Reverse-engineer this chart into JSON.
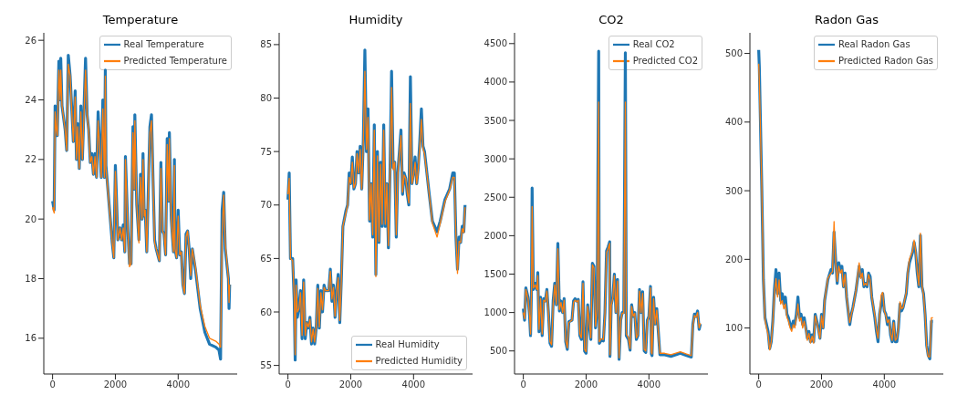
{
  "chart_data": [
    {
      "type": "line",
      "title": "Temperature",
      "legend": "top right",
      "marker": "none",
      "line_style": "solid",
      "grid": false,
      "xlim": [
        -280,
        5880
      ],
      "xticks": [
        0,
        2000,
        4000
      ],
      "ylim": [
        14.8,
        26.25
      ],
      "yticks": [
        16,
        18,
        20,
        22,
        24,
        26
      ],
      "x": [
        0,
        50,
        80,
        120,
        150,
        200,
        240,
        260,
        300,
        400,
        450,
        500,
        560,
        620,
        660,
        720,
        760,
        800,
        850,
        900,
        950,
        1050,
        1100,
        1150,
        1200,
        1250,
        1300,
        1350,
        1400,
        1450,
        1550,
        1600,
        1650,
        1680,
        1700,
        1800,
        1900,
        1950,
        2000,
        2080,
        2150,
        2200,
        2250,
        2300,
        2320,
        2400,
        2450,
        2500,
        2560,
        2600,
        2620,
        2680,
        2750,
        2800,
        2850,
        2880,
        2920,
        2950,
        3000,
        3100,
        3150,
        3200,
        3250,
        3300,
        3400,
        3450,
        3500,
        3550,
        3600,
        3650,
        3700,
        3720,
        3780,
        3850,
        3880,
        3900,
        3950,
        4000,
        4050,
        4100,
        4150,
        4200,
        4250,
        4300,
        4350,
        4400,
        4450,
        4550,
        4700,
        4850,
        5000,
        5200,
        5300,
        5350,
        5400,
        5450,
        5500,
        5600,
        5620,
        5640
      ],
      "series": [
        {
          "name": "Real Temperature",
          "color": "#1f77b4",
          "values": [
            20.6,
            20.3,
            23.8,
            23.0,
            22.8,
            25.3,
            24.0,
            25.4,
            23.8,
            23.0,
            22.3,
            25.5,
            24.8,
            23.5,
            22.6,
            24.3,
            22.0,
            23.2,
            21.7,
            23.8,
            22.0,
            25.4,
            23.5,
            23.0,
            21.9,
            22.2,
            21.5,
            22.2,
            21.4,
            23.6,
            21.4,
            24.0,
            21.4,
            25.0,
            21.8,
            20.5,
            19.2,
            18.7,
            21.8,
            19.3,
            19.7,
            19.3,
            19.8,
            18.9,
            22.1,
            19.6,
            18.5,
            18.5,
            23.1,
            21.0,
            23.5,
            20.5,
            19.3,
            21.5,
            20.0,
            22.2,
            20.1,
            20.3,
            18.9,
            23.1,
            23.5,
            21.3,
            19.3,
            19.0,
            18.6,
            21.9,
            19.6,
            19.5,
            18.8,
            22.7,
            20.6,
            22.9,
            20.0,
            18.9,
            22.0,
            19.0,
            18.7,
            20.3,
            18.8,
            18.9,
            17.8,
            17.5,
            19.5,
            19.6,
            19.0,
            18.0,
            19.0,
            18.3,
            17.0,
            16.2,
            15.8,
            15.7,
            15.6,
            15.3,
            20.3,
            20.9,
            19.0,
            18.0,
            17.0,
            17.8
          ]
        },
        {
          "name": "Predicted Temperature",
          "color": "#ff7f0e",
          "values": [
            20.4,
            20.2,
            23.6,
            23.0,
            22.8,
            25.0,
            24.0,
            25.0,
            23.8,
            23.0,
            22.3,
            25.2,
            24.8,
            23.4,
            22.6,
            24.1,
            22.0,
            23.1,
            21.7,
            23.6,
            22.0,
            25.0,
            23.5,
            23.0,
            21.9,
            22.1,
            21.5,
            22.1,
            21.4,
            23.3,
            21.4,
            23.7,
            21.4,
            24.8,
            21.7,
            20.5,
            19.2,
            18.7,
            21.6,
            19.3,
            19.7,
            19.3,
            19.7,
            18.9,
            22.0,
            19.6,
            18.4,
            18.5,
            22.9,
            21.0,
            23.3,
            20.5,
            19.2,
            21.4,
            20.0,
            22.0,
            20.1,
            20.3,
            18.9,
            22.9,
            23.3,
            21.3,
            19.2,
            19.0,
            18.6,
            21.7,
            19.6,
            19.5,
            18.8,
            22.5,
            20.6,
            22.7,
            20.0,
            18.9,
            21.8,
            19.0,
            18.7,
            20.1,
            18.8,
            18.9,
            17.8,
            17.5,
            19.4,
            19.6,
            19.0,
            18.1,
            19.0,
            18.4,
            17.1,
            16.4,
            16.0,
            15.9,
            15.8,
            15.7,
            19.5,
            20.8,
            19.2,
            18.0,
            17.2,
            17.8
          ]
        }
      ]
    },
    {
      "type": "line",
      "title": "Humidity",
      "legend": "bottom right",
      "marker": "none",
      "line_style": "solid",
      "grid": false,
      "xlim": [
        -280,
        5880
      ],
      "xticks": [
        0,
        2000,
        4000
      ],
      "ylim": [
        54.2,
        86.1
      ],
      "yticks": [
        55,
        60,
        65,
        70,
        75,
        80,
        85
      ],
      "x": [
        0,
        40,
        80,
        150,
        200,
        230,
        260,
        300,
        350,
        400,
        450,
        500,
        550,
        600,
        650,
        700,
        750,
        800,
        850,
        900,
        950,
        1000,
        1050,
        1100,
        1150,
        1200,
        1300,
        1350,
        1400,
        1450,
        1500,
        1550,
        1600,
        1650,
        1700,
        1750,
        1850,
        1900,
        1950,
        2000,
        2050,
        2100,
        2150,
        2200,
        2250,
        2300,
        2350,
        2400,
        2450,
        2500,
        2550,
        2600,
        2650,
        2700,
        2750,
        2800,
        2850,
        2900,
        2950,
        3000,
        3050,
        3100,
        3150,
        3200,
        3250,
        3300,
        3350,
        3400,
        3450,
        3500,
        3550,
        3600,
        3650,
        3700,
        3750,
        3800,
        3850,
        3900,
        3950,
        4000,
        4050,
        4100,
        4150,
        4200,
        4250,
        4300,
        4350,
        4500,
        4600,
        4750,
        4850,
        5000,
        5150,
        5250,
        5300,
        5350,
        5400,
        5450,
        5500,
        5550,
        5600,
        5640
      ],
      "series": [
        {
          "name": "Real Humidity",
          "color": "#1f77b4",
          "values": [
            70.5,
            73,
            65,
            65,
            61,
            55.5,
            63,
            59.5,
            60.5,
            62,
            57.5,
            63,
            57.5,
            59,
            58.5,
            59.5,
            57,
            58.5,
            57,
            58.5,
            62.5,
            58.5,
            62,
            60,
            62.5,
            62,
            62,
            64,
            61,
            62.5,
            59.5,
            62,
            63.5,
            59,
            63,
            68,
            69.5,
            70,
            73,
            72,
            74.5,
            71.5,
            72,
            75,
            73,
            75.5,
            71.5,
            76,
            84.5,
            75,
            79,
            68.5,
            72,
            67,
            77.5,
            63.5,
            75,
            66.5,
            74,
            68,
            77.5,
            68,
            72,
            66,
            73,
            82.5,
            73.5,
            74,
            67,
            73,
            75,
            77,
            71,
            73,
            72.5,
            71,
            70,
            82,
            72,
            73,
            74.5,
            72,
            73.5,
            76,
            79,
            75.5,
            75,
            71,
            68.5,
            67.5,
            68.5,
            70.5,
            71.5,
            73,
            73,
            67,
            64,
            67,
            66.5,
            68,
            67.5,
            70
          ]
        },
        {
          "name": "Predicted Humidity",
          "color": "#ff7f0e",
          "values": [
            71,
            72.5,
            65,
            64.8,
            61.5,
            56,
            62.5,
            60,
            60.3,
            61.8,
            57.8,
            62.8,
            57.8,
            59,
            58.6,
            59.3,
            57.2,
            58.4,
            57.2,
            58.6,
            62.2,
            58.6,
            61.8,
            60.2,
            62.3,
            62,
            62,
            63.8,
            61.2,
            62.3,
            59.6,
            61.8,
            63.2,
            59.2,
            62.8,
            68,
            69.3,
            70,
            72.6,
            72,
            74,
            71.6,
            72,
            74.8,
            73,
            75.2,
            71.5,
            75.8,
            82.5,
            75.2,
            78.2,
            68.6,
            72,
            67.2,
            77,
            63.3,
            74.6,
            66.6,
            73.8,
            68.2,
            77,
            68.2,
            72,
            66.2,
            72.8,
            81,
            73.3,
            74,
            67.2,
            72.8,
            74.8,
            76.5,
            71.2,
            72.8,
            72.5,
            71.2,
            70.2,
            79.5,
            72,
            72.8,
            74,
            72,
            73.3,
            75.6,
            78,
            75.3,
            74.8,
            71,
            68.3,
            67,
            68.3,
            70.3,
            71.4,
            72.6,
            72.6,
            67.2,
            63.6,
            66.6,
            66.5,
            67.8,
            67.4,
            69.8
          ]
        }
      ]
    },
    {
      "type": "line",
      "title": "CO2",
      "legend": "top right",
      "marker": "none",
      "line_style": "solid",
      "grid": false,
      "xlim": [
        -280,
        5880
      ],
      "xticks": [
        0,
        2000,
        4000
      ],
      "ylim": [
        200,
        4640
      ],
      "yticks": [
        500,
        1000,
        1500,
        2000,
        2500,
        3000,
        3500,
        4000,
        4500
      ],
      "x": [
        0,
        40,
        80,
        150,
        200,
        230,
        260,
        280,
        320,
        380,
        430,
        460,
        500,
        550,
        600,
        650,
        700,
        750,
        800,
        850,
        900,
        950,
        1000,
        1050,
        1100,
        1150,
        1200,
        1250,
        1300,
        1350,
        1400,
        1450,
        1550,
        1600,
        1650,
        1700,
        1750,
        1800,
        1850,
        1900,
        1950,
        2000,
        2050,
        2100,
        2150,
        2200,
        2250,
        2300,
        2350,
        2400,
        2420,
        2480,
        2550,
        2600,
        2650,
        2700,
        2750,
        2760,
        2800,
        2850,
        2900,
        2950,
        3000,
        3050,
        3100,
        3150,
        3200,
        3250,
        3280,
        3350,
        3400,
        3450,
        3500,
        3550,
        3600,
        3650,
        3700,
        3750,
        3800,
        3850,
        3900,
        3950,
        4000,
        4050,
        4080,
        4100,
        4150,
        4200,
        4250,
        4350,
        4500,
        4700,
        5000,
        5200,
        5350,
        5400,
        5450,
        5500,
        5550,
        5600,
        5640
      ],
      "series": [
        {
          "name": "Real CO2",
          "color": "#1f77b4",
          "values": [
            1050,
            900,
            1320,
            1200,
            950,
            700,
            1300,
            2620,
            1300,
            1380,
            1300,
            1520,
            750,
            1200,
            700,
            1180,
            1150,
            1300,
            1000,
            600,
            560,
            1150,
            1380,
            1100,
            1900,
            1020,
            1150,
            1000,
            1180,
            620,
            520,
            880,
            900,
            1150,
            1180,
            1150,
            1170,
            700,
            650,
            1400,
            500,
            470,
            1100,
            850,
            650,
            1640,
            1600,
            800,
            1050,
            4400,
            600,
            640,
            630,
            1000,
            1800,
            1850,
            1920,
            430,
            1100,
            1200,
            1500,
            1000,
            1430,
            390,
            900,
            1000,
            1000,
            4380,
            700,
            650,
            510,
            1100,
            950,
            1000,
            650,
            700,
            1300,
            1000,
            1270,
            500,
            480,
            900,
            950,
            1340,
            460,
            440,
            1200,
            850,
            1050,
            450,
            450,
            430,
            470,
            440,
            420,
            850,
            980,
            950,
            1020,
            780,
            850
          ]
        },
        {
          "name": "Predicted CO2",
          "color": "#ff7f0e",
          "values": [
            1000,
            920,
            1300,
            1180,
            960,
            720,
            1280,
            2380,
            1320,
            1360,
            1300,
            1480,
            780,
            1180,
            720,
            1160,
            1140,
            1280,
            1000,
            620,
            580,
            1120,
            1360,
            1100,
            1830,
            1040,
            1130,
            1000,
            1160,
            640,
            540,
            870,
            900,
            1130,
            1160,
            1140,
            1160,
            720,
            670,
            1380,
            520,
            490,
            1080,
            860,
            670,
            1620,
            1580,
            820,
            1040,
            3740,
            620,
            660,
            650,
            990,
            1780,
            1830,
            1900,
            450,
            1090,
            1190,
            1480,
            1000,
            1410,
            410,
            890,
            990,
            990,
            3740,
            720,
            670,
            530,
            1080,
            950,
            990,
            670,
            710,
            1280,
            1000,
            1250,
            520,
            500,
            890,
            940,
            1320,
            480,
            460,
            1180,
            850,
            1030,
            470,
            470,
            450,
            490,
            460,
            440,
            830,
            960,
            940,
            1000,
            800,
            860
          ]
        }
      ]
    },
    {
      "type": "line",
      "title": "Radon Gas",
      "legend": "top right",
      "marker": "none",
      "line_style": "solid",
      "grid": false,
      "xlim": [
        -280,
        5880
      ],
      "xticks": [
        0,
        2000,
        4000
      ],
      "ylim": [
        33,
        530
      ],
      "yticks": [
        100,
        200,
        300,
        400,
        500
      ],
      "x": [
        0,
        20,
        100,
        150,
        200,
        250,
        300,
        350,
        400,
        450,
        500,
        550,
        600,
        650,
        700,
        750,
        800,
        850,
        900,
        950,
        1000,
        1050,
        1100,
        1150,
        1200,
        1250,
        1300,
        1350,
        1400,
        1450,
        1500,
        1550,
        1600,
        1650,
        1700,
        1750,
        1800,
        1850,
        1900,
        1950,
        2000,
        2050,
        2100,
        2200,
        2300,
        2350,
        2400,
        2450,
        2500,
        2550,
        2600,
        2650,
        2700,
        2750,
        2800,
        2900,
        2950,
        3000,
        3100,
        3200,
        3250,
        3300,
        3350,
        3400,
        3450,
        3500,
        3550,
        3600,
        3700,
        3750,
        3800,
        3850,
        3900,
        3950,
        4000,
        4050,
        4100,
        4150,
        4200,
        4250,
        4300,
        4350,
        4400,
        4450,
        4500,
        4550,
        4600,
        4700,
        4750,
        4800,
        4900,
        4950,
        5000,
        5050,
        5100,
        5150,
        5200,
        5250,
        5300,
        5350,
        5400,
        5450,
        5500,
        5550
      ],
      "series": [
        {
          "name": "Real Radon Gas",
          "color": "#1f77b4",
          "values": [
            505,
            480,
            300,
            170,
            115,
            105,
            95,
            70,
            80,
            110,
            155,
            185,
            150,
            180,
            140,
            150,
            135,
            145,
            120,
            115,
            105,
            100,
            110,
            105,
            120,
            145,
            115,
            120,
            105,
            115,
            100,
            85,
            95,
            80,
            90,
            80,
            120,
            110,
            100,
            85,
            120,
            100,
            140,
            170,
            185,
            180,
            240,
            200,
            165,
            195,
            185,
            190,
            160,
            180,
            145,
            105,
            120,
            130,
            155,
            190,
            175,
            185,
            160,
            165,
            160,
            180,
            175,
            145,
            115,
            95,
            80,
            120,
            135,
            150,
            125,
            120,
            105,
            115,
            90,
            80,
            110,
            80,
            80,
            100,
            135,
            125,
            130,
            150,
            180,
            195,
            210,
            225,
            210,
            180,
            160,
            235,
            160,
            150,
            120,
            75,
            60,
            55,
            110,
            110
          ]
        },
        {
          "name": "Predicted Radon Gas",
          "color": "#ff7f0e",
          "values": [
            485,
            460,
            300,
            170,
            112,
            100,
            90,
            68,
            80,
            108,
            150,
            172,
            145,
            170,
            135,
            140,
            128,
            135,
            115,
            110,
            100,
            95,
            105,
            100,
            115,
            135,
            110,
            115,
            100,
            110,
            98,
            82,
            92,
            78,
            88,
            78,
            118,
            108,
            98,
            85,
            118,
            100,
            140,
            172,
            180,
            182,
            255,
            195,
            168,
            190,
            180,
            185,
            160,
            178,
            145,
            108,
            120,
            128,
            155,
            195,
            172,
            180,
            162,
            165,
            162,
            178,
            170,
            145,
            118,
            97,
            85,
            118,
            148,
            152,
            125,
            118,
            108,
            112,
            92,
            82,
            108,
            82,
            85,
            100,
            138,
            128,
            130,
            152,
            182,
            200,
            212,
            228,
            212,
            182,
            162,
            238,
            162,
            148,
            120,
            72,
            58,
            58,
            115,
            115
          ]
        }
      ]
    }
  ]
}
